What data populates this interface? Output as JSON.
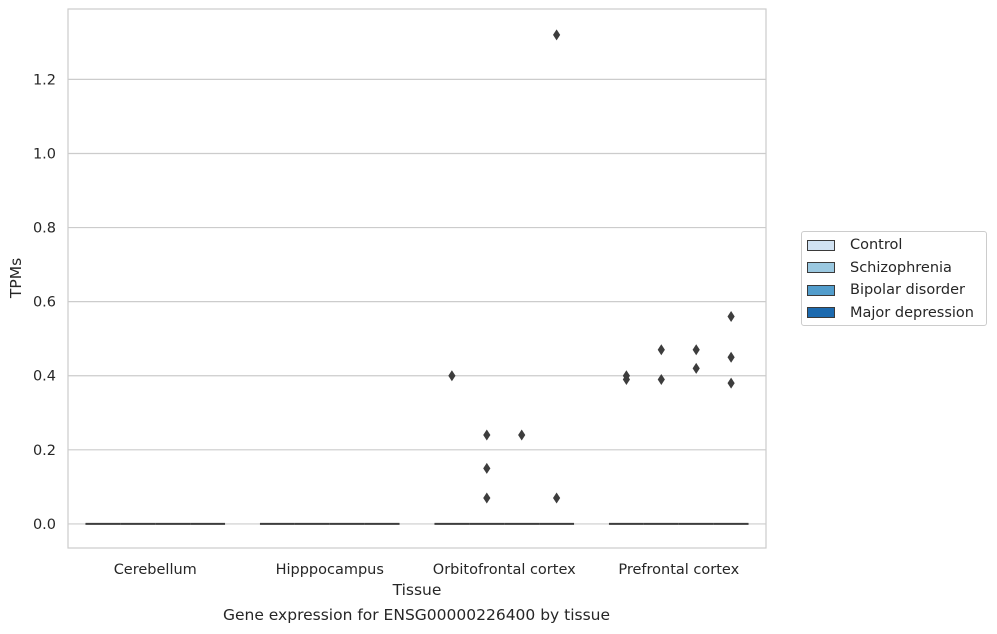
{
  "caption": "Gene expression for ENSG00000226400 by tissue",
  "chart_data": {
    "type": "box",
    "xlabel": "Tissue",
    "ylabel": "TPMs",
    "categories": [
      "Cerebellum",
      "Hipppocampus",
      "Orbitofrontal cortex",
      "Prefrontal cortex"
    ],
    "ylim": [
      -0.065,
      1.39
    ],
    "yticks": [
      0.0,
      0.2,
      0.4,
      0.6,
      0.8,
      1.0,
      1.2
    ],
    "ytick_labels": [
      "0.0",
      "0.2",
      "0.4",
      "0.6",
      "0.8",
      "1.0",
      "1.2"
    ],
    "grid": true,
    "legend_position": "right",
    "series": [
      {
        "name": "Control",
        "color": "#d1e2f2",
        "medians": [
          0,
          0,
          0,
          0
        ]
      },
      {
        "name": "Schizophrenia",
        "color": "#9ac8e0",
        "medians": [
          0,
          0,
          0,
          0
        ]
      },
      {
        "name": "Bipolar disorder",
        "color": "#529dcc",
        "medians": [
          0,
          0,
          0,
          0
        ]
      },
      {
        "name": "Major depression",
        "color": "#1c6aaf",
        "medians": [
          0,
          0,
          0,
          0
        ]
      }
    ],
    "outliers": [
      {
        "category": 2,
        "series": 0,
        "values": [
          0.4
        ]
      },
      {
        "category": 2,
        "series": 1,
        "values": [
          0.24,
          0.15,
          0.07
        ]
      },
      {
        "category": 2,
        "series": 2,
        "values": [
          0.24
        ]
      },
      {
        "category": 2,
        "series": 3,
        "values": [
          1.32,
          0.07
        ]
      },
      {
        "category": 3,
        "series": 0,
        "values": [
          0.4,
          0.39
        ]
      },
      {
        "category": 3,
        "series": 1,
        "values": [
          0.47,
          0.39
        ]
      },
      {
        "category": 3,
        "series": 2,
        "values": [
          0.47,
          0.42
        ]
      },
      {
        "category": 3,
        "series": 3,
        "values": [
          0.56,
          0.45,
          0.38
        ]
      }
    ]
  }
}
